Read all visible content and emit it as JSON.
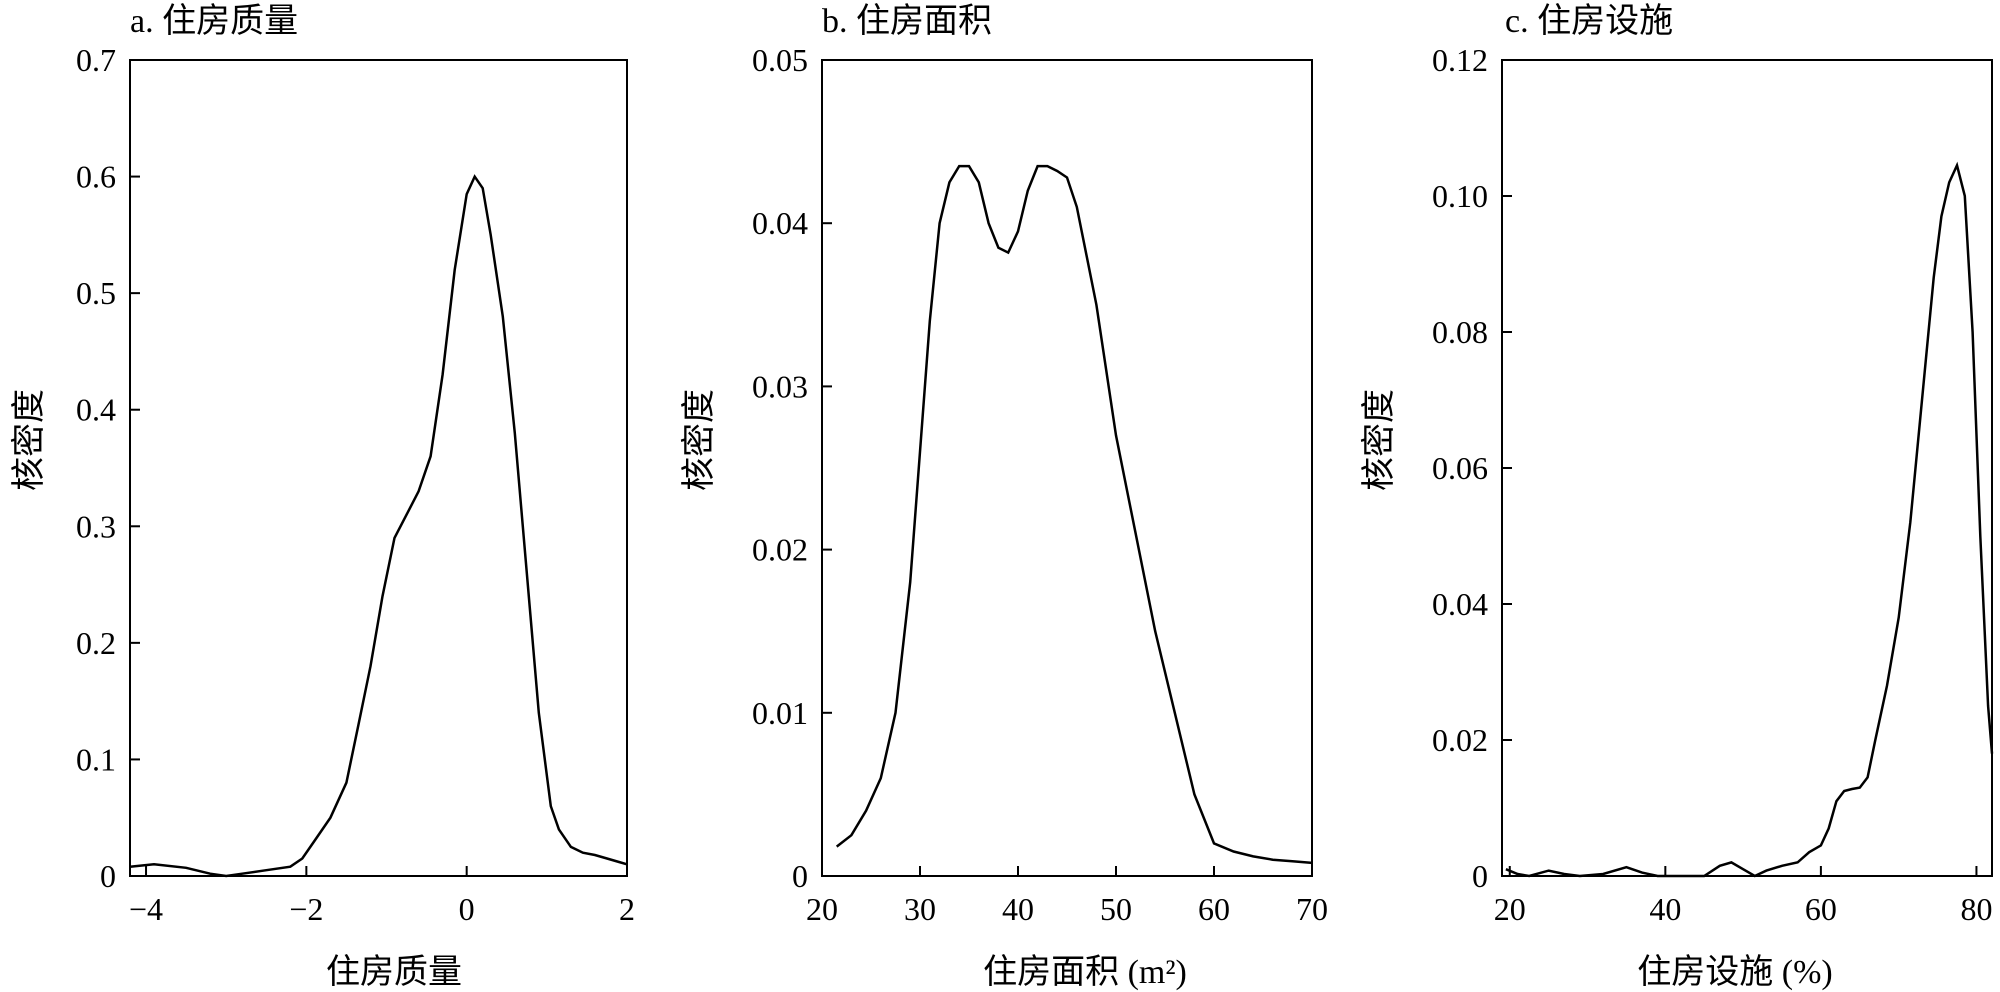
{
  "chart_data": [
    {
      "type": "line",
      "title": "a. 住房质量",
      "xlabel": "住房质量",
      "ylabel": "核密度",
      "xlim": [
        -4.2,
        2
      ],
      "ylim": [
        0,
        0.7
      ],
      "xticks": [
        -4,
        -2,
        0,
        2
      ],
      "xtick_labels": [
        "−4",
        "−2",
        "0",
        "2"
      ],
      "yticks": [
        0,
        0.1,
        0.2,
        0.3,
        0.4,
        0.5,
        0.6,
        0.7
      ],
      "ytick_labels": [
        "0",
        "0.1",
        "0.2",
        "0.3",
        "0.4",
        "0.5",
        "0.6",
        "0.7"
      ],
      "grid": false,
      "series": [
        {
          "x": [
            -4.2,
            -3.9,
            -3.5,
            -3.2,
            -3.0,
            -2.8,
            -2.5,
            -2.2,
            -2.05,
            -1.9,
            -1.7,
            -1.5,
            -1.35,
            -1.2,
            -1.05,
            -0.9,
            -0.75,
            -0.6,
            -0.45,
            -0.3,
            -0.15,
            0.0,
            0.1,
            0.2,
            0.3,
            0.45,
            0.6,
            0.75,
            0.9,
            1.05,
            1.15,
            1.3,
            1.45,
            1.6,
            1.75,
            1.9,
            2.0
          ],
          "y": [
            0.008,
            0.01,
            0.007,
            0.002,
            0.0,
            0.002,
            0.005,
            0.008,
            0.015,
            0.03,
            0.05,
            0.08,
            0.13,
            0.18,
            0.24,
            0.29,
            0.31,
            0.33,
            0.36,
            0.43,
            0.52,
            0.585,
            0.6,
            0.59,
            0.55,
            0.48,
            0.38,
            0.26,
            0.14,
            0.06,
            0.04,
            0.025,
            0.02,
            0.018,
            0.015,
            0.012,
            0.01
          ]
        }
      ]
    },
    {
      "type": "line",
      "title": "b. 住房面积",
      "xlabel": "住房面积 (m²)",
      "ylabel": "核密度",
      "xlim": [
        20,
        70
      ],
      "ylim": [
        0,
        0.05
      ],
      "xticks": [
        20,
        30,
        40,
        50,
        60,
        70
      ],
      "xtick_labels": [
        "20",
        "30",
        "40",
        "50",
        "60",
        "70"
      ],
      "yticks": [
        0,
        0.01,
        0.02,
        0.03,
        0.04,
        0.05
      ],
      "ytick_labels": [
        "0",
        "0.01",
        "0.02",
        "0.03",
        "0.04",
        "0.05"
      ],
      "grid": false,
      "series": [
        {
          "x": [
            21.5,
            23,
            24.5,
            26,
            27.5,
            29,
            30,
            31,
            32,
            33,
            34,
            35,
            36,
            37,
            38,
            39,
            40,
            41,
            42,
            43,
            44,
            45,
            46,
            47,
            48,
            49,
            50,
            52,
            54,
            56,
            58,
            60,
            62,
            64,
            66,
            68,
            70
          ],
          "y": [
            0.0018,
            0.0025,
            0.004,
            0.006,
            0.01,
            0.018,
            0.026,
            0.034,
            0.04,
            0.0425,
            0.0435,
            0.0435,
            0.0425,
            0.04,
            0.0385,
            0.0382,
            0.0395,
            0.042,
            0.0435,
            0.0435,
            0.0432,
            0.0428,
            0.041,
            0.038,
            0.035,
            0.031,
            0.027,
            0.021,
            0.015,
            0.01,
            0.005,
            0.002,
            0.0015,
            0.0012,
            0.001,
            0.0009,
            0.0008
          ]
        }
      ]
    },
    {
      "type": "line",
      "title": "c. 住房设施",
      "xlabel": "住房设施 (%)",
      "ylabel": "核密度",
      "xlim": [
        19,
        82
      ],
      "ylim": [
        0,
        0.12
      ],
      "xticks": [
        20,
        40,
        60,
        80
      ],
      "xtick_labels": [
        "20",
        "40",
        "60",
        "80"
      ],
      "yticks": [
        0,
        0.02,
        0.04,
        0.06,
        0.08,
        0.1,
        0.12
      ],
      "ytick_labels": [
        "0",
        "0.02",
        "0.04",
        "0.06",
        "0.08",
        "0.10",
        "0.12"
      ],
      "grid": false,
      "series": [
        {
          "x": [
            19.5,
            21,
            22.5,
            25,
            27,
            29,
            32,
            35,
            37,
            39,
            42,
            45,
            47,
            48.5,
            50,
            51.5,
            53,
            55,
            57,
            58.5,
            60,
            61,
            62,
            63,
            64,
            65,
            66,
            67,
            68.5,
            70,
            71.5,
            73,
            74.5,
            75.5,
            76.5,
            77.5,
            78.5,
            79.5,
            80.5,
            81.5,
            82
          ],
          "y": [
            0.001,
            0.0003,
            0.0,
            0.0008,
            0.0003,
            0.0,
            0.0003,
            0.0013,
            0.0005,
            0.0,
            0.0,
            0.0,
            0.0015,
            0.002,
            0.001,
            0.0,
            0.0008,
            0.0015,
            0.002,
            0.0035,
            0.0045,
            0.007,
            0.011,
            0.0125,
            0.0128,
            0.013,
            0.0145,
            0.02,
            0.028,
            0.038,
            0.052,
            0.07,
            0.088,
            0.097,
            0.102,
            0.1045,
            0.1,
            0.08,
            0.05,
            0.025,
            0.018
          ]
        }
      ]
    }
  ]
}
